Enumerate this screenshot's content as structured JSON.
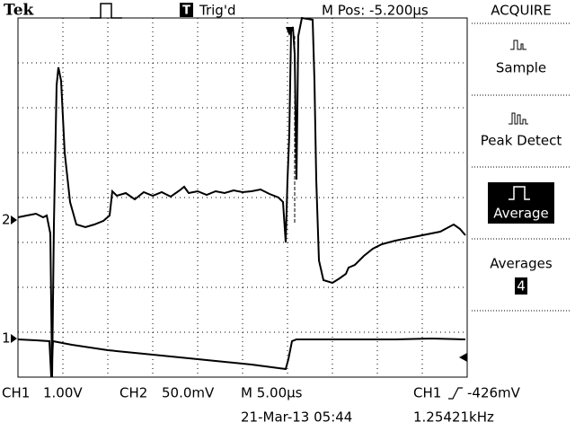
{
  "header": {
    "brand": "Tek",
    "trigger_state": "Trig'd",
    "icon": "T",
    "position": "M Pos: -5.200µs",
    "menu_title": "ACQUIRE"
  },
  "menu": {
    "items": [
      "Sample",
      "Peak Detect",
      "Average"
    ],
    "selected": "Average",
    "averages_label": "Averages",
    "averages_value": "4"
  },
  "markers": {
    "ch2": "2",
    "ch1": "1"
  },
  "footer": {
    "ch1_label": "CH1",
    "ch1_scale": "1.00V",
    "ch2_label": "CH2",
    "ch2_scale": "50.0mV",
    "timebase": "M 5.00µs",
    "trigger_source": "CH1",
    "trigger_level": "-426mV",
    "datetime": "21-Mar-13 05:44",
    "frequency": "1.25421kHz"
  }
}
